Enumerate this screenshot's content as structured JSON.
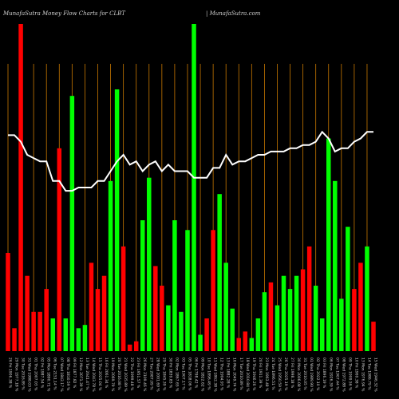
{
  "header": {
    "title_left": "MunafaSutra  Money Flow  Charts for CLBT",
    "title_right": "| MunafaSutra.com"
  },
  "chart_data": {
    "type": "bar",
    "title": "MunafaSutra  Money Flow  Charts for CLBT",
    "xlabel": "",
    "ylabel": "",
    "ylim": [
      0,
      100
    ],
    "grid": "vertical",
    "colors": {
      "up": "#00ff00",
      "down": "#ff0000",
      "line": "#ffffff",
      "grid": "#c87800",
      "background": "#000000"
    },
    "categories": [
      "26 Fri 1906.38 %",
      "29 Mon 1977.18 %",
      "30 Tue 2016.89 %",
      "31 Wed 1988.03 %",
      "01 Thu 2007.03 %",
      "02 Fri 1987.54 %",
      "05 Mon 1890.71 %",
      "06 Tue 2151.14 %",
      "07 Wed 1842.17 %",
      "08 Thu 1810.59 %",
      "09 Fri 1877.82 %",
      "12 Mon 2071.39 %",
      "13 Tue 2041.47 %",
      "14 Wed 2043.78 %",
      "15 Thu 2025.04 %",
      "16 Fri 2061.34 %",
      "19 Mon 2069.79 %",
      "20 Tue 2016.08 %",
      "21 Wed 2035.89 %",
      "22 Thu 1999.48 %",
      "23 Fri 1951.57 %",
      "26 Mon 2109.46 %",
      "27 Tue 2087.09 %",
      "28 Wed 2001.69 %",
      "29 Thu 1845.39 %",
      "30 Fri 1839.83 %",
      "02 Mon 1867.65 %",
      "03 Tue 1907.17 %",
      "05 Thu 1818.06 %",
      "06 Fri 1798.42 %",
      "09 Mon 1822.62 %",
      "10 Tue 1896.49 %",
      "11 Wed 1862.38 %",
      "12 Thu 1904.93 %",
      "13 Fri 1882.28 %",
      "16 Mon 2049.74 %",
      "17 Tue 2010.89 %",
      "18 Wed 2010.84 %",
      "19 Thu 1946.26 %",
      "20 Fri 1911.39 %",
      "23 Mon 1963.48 %",
      "24 Tue 1896.51 %",
      "25 Wed 1950.59 %",
      "26 Thu 2025.19 %",
      "27 Fri 1998.18 %",
      "30 Mon 2006.08 %",
      "31 Tue 2010.05 %",
      "01 Wed 1989.90 %",
      "02 Thu 2022.10 %",
      "03 Fri 1896.19 %",
      "06 Mon 1926.39 %",
      "07 Tue 1967.44 %",
      "08 Wed 1972.88 %",
      "09 Thu 1909.56 %",
      "10 Fri 1969.38 %",
      "13 Mon 1976.94 %",
      "14 Tue 1986.79 %",
      "15 Wed 1946.32 %"
    ],
    "bar_directions": [
      "down",
      "down",
      "down",
      "down",
      "down",
      "down",
      "down",
      "up",
      "down",
      "up",
      "up",
      "up",
      "up",
      "down",
      "down",
      "down",
      "up",
      "up",
      "down",
      "down",
      "down",
      "up",
      "up",
      "down",
      "down",
      "up",
      "up",
      "up",
      "up",
      "up",
      "up",
      "down",
      "down",
      "up",
      "up",
      "up",
      "down",
      "down",
      "up",
      "up",
      "up",
      "down",
      "up",
      "up",
      "up",
      "up",
      "down",
      "down",
      "up",
      "up",
      "up",
      "up",
      "up",
      "up",
      "down",
      "down",
      "up",
      "down"
    ],
    "values": [
      30,
      7,
      100,
      23,
      12,
      12,
      19,
      10,
      62,
      10,
      78,
      7,
      8,
      27,
      19,
      23,
      52,
      80,
      32,
      2,
      3,
      40,
      53,
      26,
      20,
      14,
      40,
      12,
      37,
      100,
      5,
      10,
      37,
      48,
      27,
      13,
      4,
      6,
      4,
      10,
      18,
      21,
      14,
      23,
      19,
      23,
      25,
      32,
      20,
      10,
      65,
      52,
      16,
      38,
      19,
      27,
      32,
      9
    ],
    "series": [
      {
        "values": [
          66,
          66,
          64,
          60,
          59,
          58,
          58,
          52,
          52,
          49,
          49,
          50,
          50,
          50,
          52,
          52,
          55,
          58,
          60,
          57,
          58,
          55,
          57,
          58,
          55,
          57,
          55,
          55,
          55,
          53,
          53,
          53,
          56,
          56,
          60,
          57,
          58,
          58,
          59,
          60,
          60,
          61,
          61,
          61,
          62,
          62,
          63,
          63,
          64,
          67,
          65,
          61,
          62,
          62,
          64,
          65,
          67,
          67
        ]
      }
    ]
  }
}
